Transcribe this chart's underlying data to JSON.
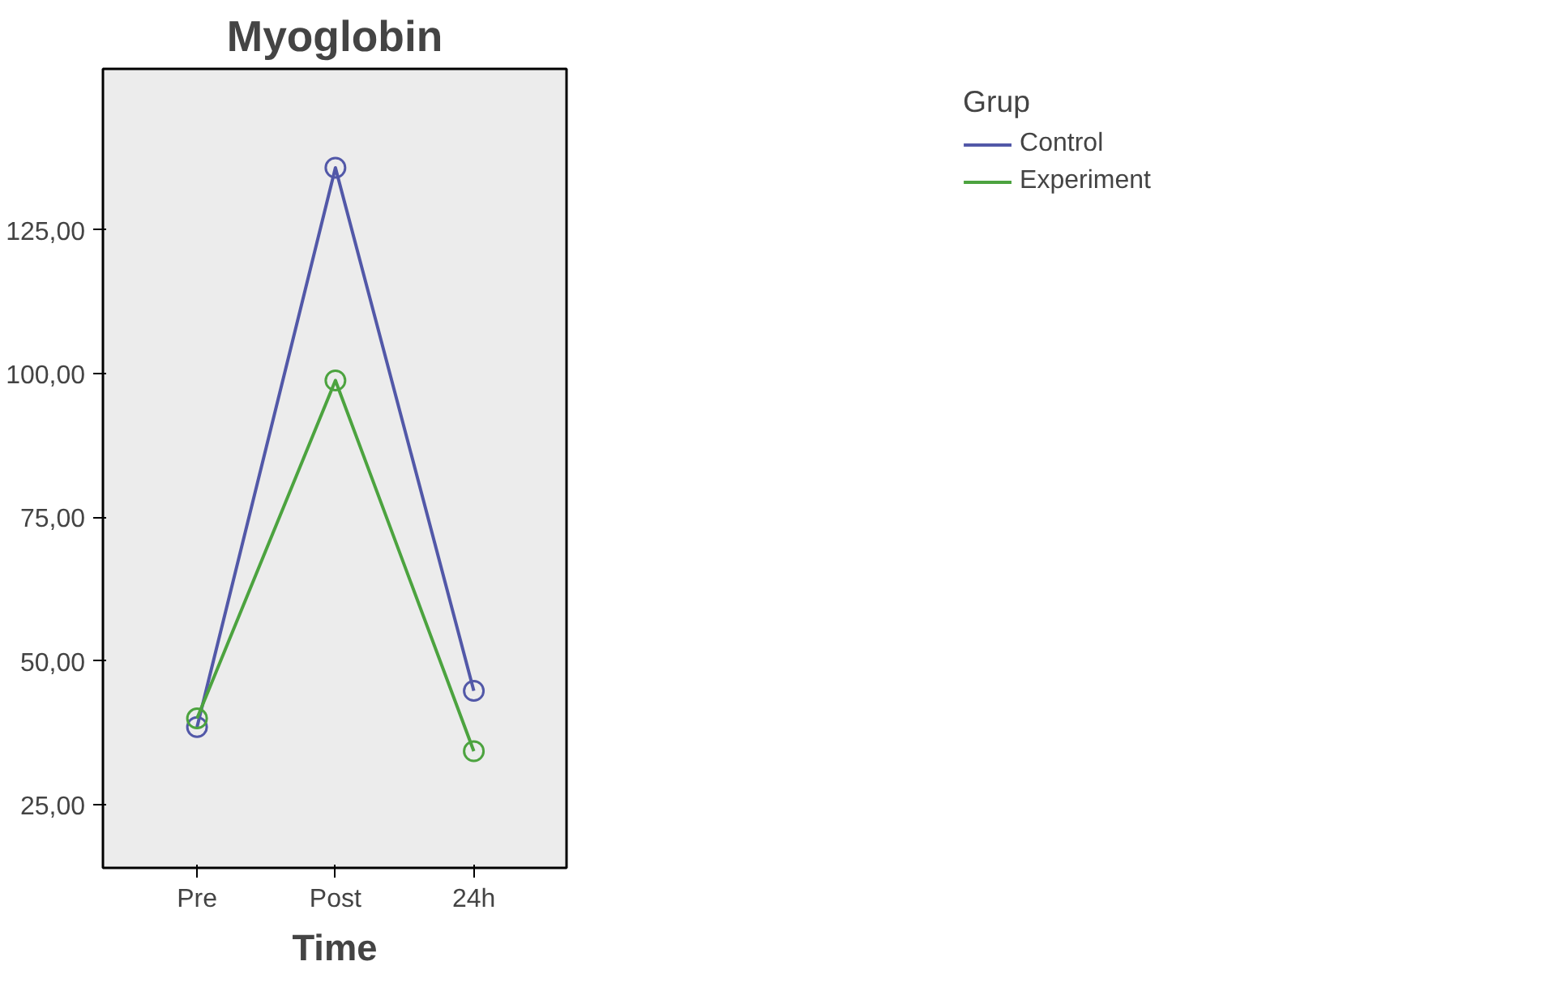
{
  "chart_data": {
    "type": "line",
    "title": "Myoglobin",
    "xlabel": "Time",
    "legend_title": "Grup",
    "categories": [
      "Pre",
      "Post",
      "24h"
    ],
    "series": [
      {
        "name": "Control",
        "color": "#5258a8",
        "values": [
          38.5,
          135.8,
          44.8
        ]
      },
      {
        "name": "Experiment",
        "color": "#4ca33f",
        "values": [
          40.0,
          98.8,
          34.3
        ]
      }
    ],
    "ylim": [
      14,
      153
    ],
    "yticks": [
      {
        "value": 25,
        "label": "25,00"
      },
      {
        "value": 50,
        "label": "50,00"
      },
      {
        "value": 75,
        "label": "75,00"
      },
      {
        "value": 100,
        "label": "100,00"
      },
      {
        "value": 125,
        "label": "125,00"
      }
    ],
    "grid": false,
    "legend": "right",
    "marker": "circle",
    "line_style": "solid"
  }
}
